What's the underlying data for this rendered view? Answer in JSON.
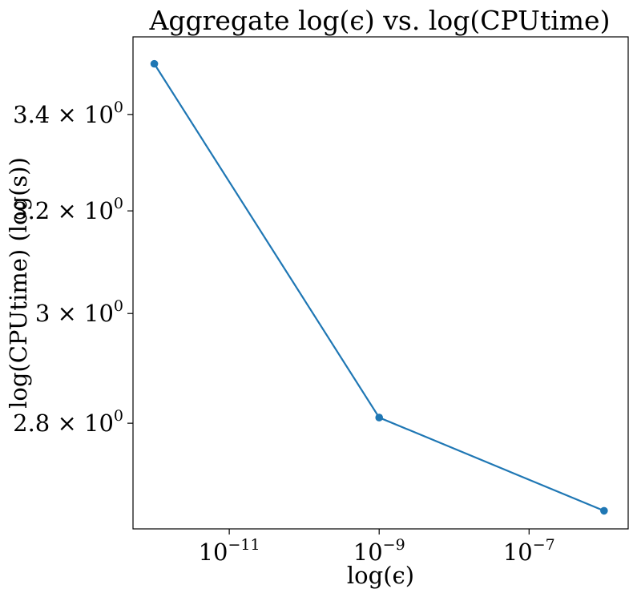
{
  "chart_data": {
    "type": "line",
    "title": "Aggregate log(ϵ) vs. log(CPUtime)",
    "xlabel": "log(ϵ)",
    "ylabel": "log(CPUtime) (log(s))",
    "x_scale": "log",
    "y_scale": "log",
    "x": [
      1e-12,
      1e-09,
      1e-06
    ],
    "series": [
      {
        "values": [
          3.51,
          2.81,
          2.65
        ],
        "color": "#1f77b4"
      }
    ],
    "xlim": [
      5.2e-13,
      2.1e-06
    ],
    "ylim": [
      2.62,
      3.57
    ],
    "x_ticks": [
      {
        "value": 1e-11,
        "base": "10",
        "exp": "−11"
      },
      {
        "value": 1e-09,
        "base": "10",
        "exp": "−9"
      },
      {
        "value": 1e-07,
        "base": "10",
        "exp": "−7"
      }
    ],
    "y_ticks": [
      {
        "value": 2.8,
        "mantissa": "2.8",
        "base": "× 10",
        "exp": "0"
      },
      {
        "value": 3.0,
        "mantissa": "3",
        "base": "× 10",
        "exp": "0"
      },
      {
        "value": 3.2,
        "mantissa": "3.2",
        "base": "× 10",
        "exp": "0"
      },
      {
        "value": 3.4,
        "mantissa": "3.4",
        "base": "× 10",
        "exp": "0"
      }
    ],
    "grid": false,
    "legend": "none"
  }
}
